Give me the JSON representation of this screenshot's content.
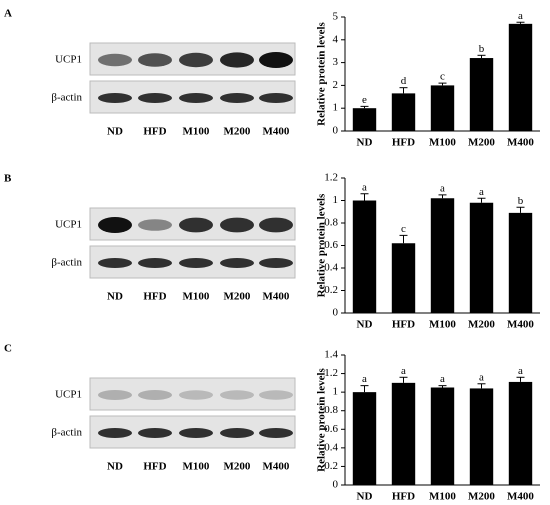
{
  "blots": [
    {
      "panel": "A",
      "rows": [
        "UCP1",
        "β-actin"
      ],
      "lanes": [
        "ND",
        "HFD",
        "M100",
        "M200",
        "M400"
      ]
    },
    {
      "panel": "B",
      "rows": [
        "UCP1",
        "β-actin"
      ],
      "lanes": [
        "ND",
        "HFD",
        "M100",
        "M200",
        "M400"
      ]
    },
    {
      "panel": "C",
      "rows": [
        "UCP1",
        "β-actin"
      ],
      "lanes": [
        "ND",
        "HFD",
        "M100",
        "M200",
        "M400"
      ]
    }
  ],
  "chart_data": [
    {
      "type": "bar",
      "y_label": "Relative protein levels",
      "color": "#000000",
      "categories": [
        "ND",
        "HFD",
        "M100",
        "M200",
        "M400"
      ],
      "values": [
        1.0,
        1.65,
        2.0,
        3.2,
        4.7
      ],
      "errors": [
        0.08,
        0.25,
        0.1,
        0.12,
        0.07
      ],
      "annotations": [
        "e",
        "d",
        "c",
        "b",
        "a"
      ],
      "ylim": [
        0,
        5
      ],
      "yticks": [
        0,
        1,
        2,
        3,
        4,
        5
      ]
    },
    {
      "type": "bar",
      "y_label": "Relative protein levels",
      "color": "#000000",
      "categories": [
        "ND",
        "HFD",
        "M100",
        "M200",
        "M400"
      ],
      "values": [
        1.0,
        0.62,
        1.02,
        0.98,
        0.89
      ],
      "errors": [
        0.06,
        0.07,
        0.03,
        0.04,
        0.05
      ],
      "annotations": [
        "a",
        "c",
        "a",
        "a",
        "b"
      ],
      "ylim": [
        0,
        1.2
      ],
      "yticks": [
        0,
        0.2,
        0.4,
        0.6,
        0.8,
        1,
        1.2
      ]
    },
    {
      "type": "bar",
      "y_label": "Relative protein levels",
      "color": "#000000",
      "categories": [
        "ND",
        "HFD",
        "M100",
        "M200",
        "M400"
      ],
      "values": [
        1.0,
        1.1,
        1.05,
        1.04,
        1.11
      ],
      "errors": [
        0.07,
        0.06,
        0.02,
        0.05,
        0.05
      ],
      "annotations": [
        "a",
        "a",
        "a",
        "a",
        "a"
      ],
      "ylim": [
        0,
        1.4
      ],
      "yticks": [
        0,
        0.2,
        0.4,
        0.6,
        0.8,
        1,
        1.2,
        1.4
      ]
    }
  ]
}
